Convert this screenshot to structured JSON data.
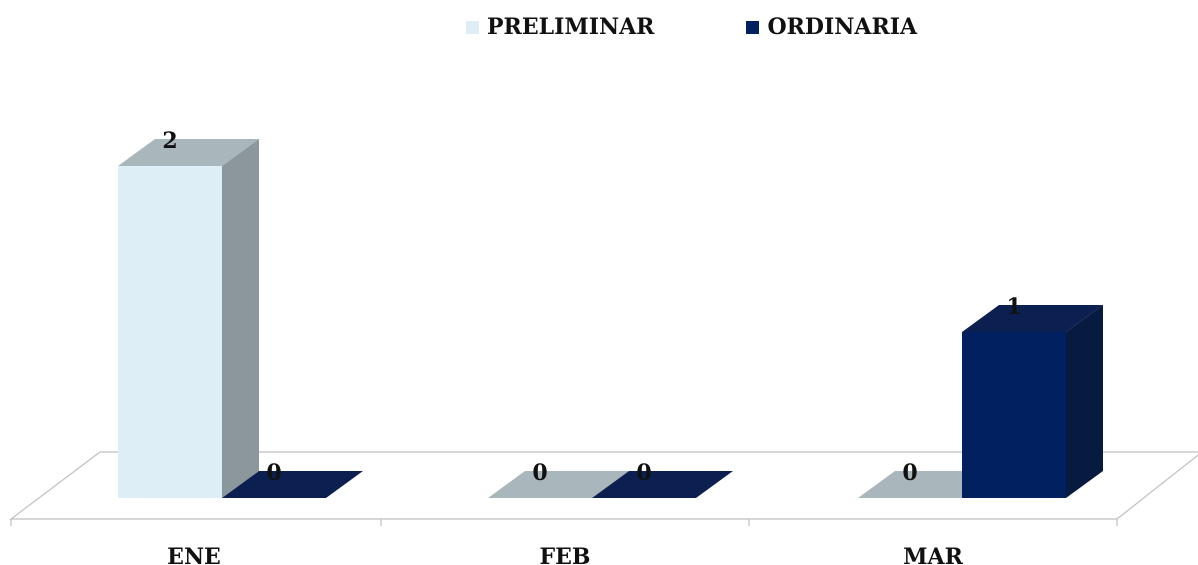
{
  "chart_data": {
    "type": "bar",
    "categories": [
      "ENE",
      "FEB",
      "MAR"
    ],
    "series": [
      {
        "name": "PRELIMINAR",
        "values": [
          2,
          0,
          0
        ],
        "color": "#DDEEF6",
        "side_color": "#8C979C",
        "top_color": "#A9B6BC"
      },
      {
        "name": "ORDINARIA",
        "values": [
          0,
          0,
          1
        ],
        "color": "#002060",
        "side_color": "#071A40",
        "top_color": "#0B2050"
      }
    ],
    "ylim": [
      0,
      2
    ],
    "grid": false,
    "legend_position": "top",
    "title": "",
    "xlabel": "",
    "ylabel": ""
  }
}
